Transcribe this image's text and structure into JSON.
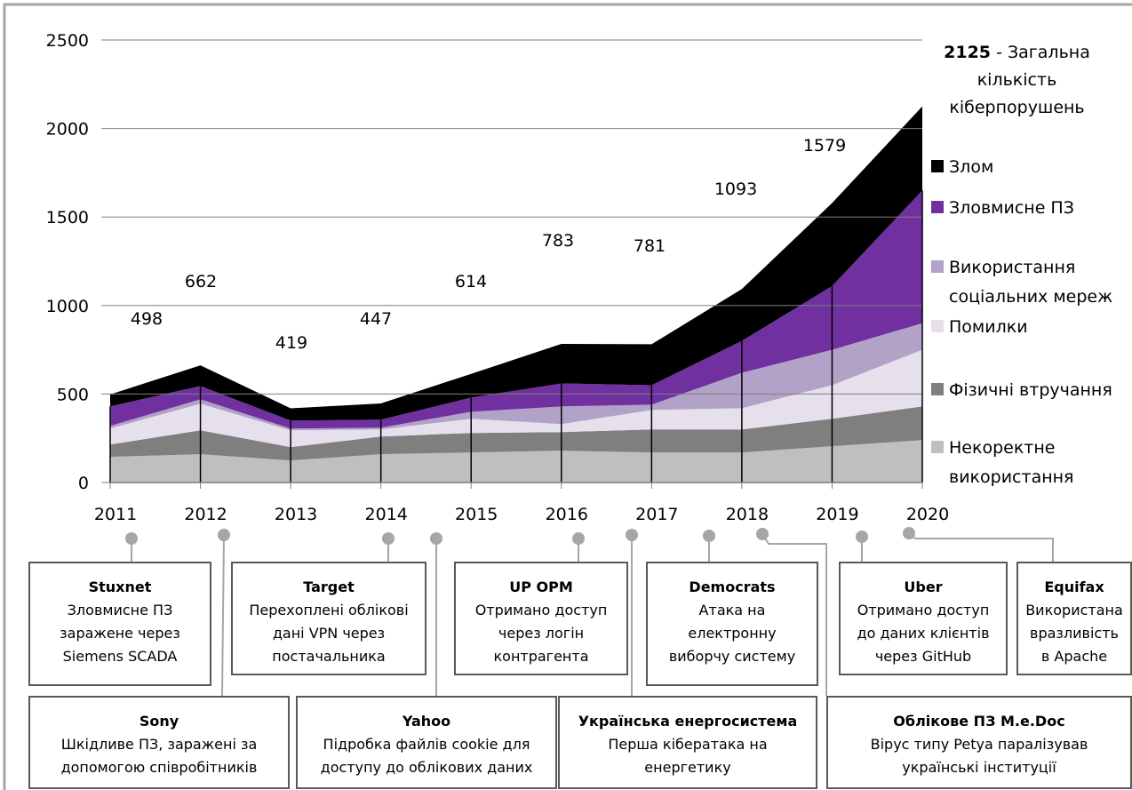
{
  "chart_data": {
    "type": "stacked-area",
    "categories": [
      "2011",
      "2012",
      "2013",
      "2014",
      "2015",
      "2016",
      "2017",
      "2018",
      "2019",
      "2020"
    ],
    "series": [
      {
        "name": "Некоректне використання",
        "color": "#bfbfbf",
        "values": [
          145,
          160,
          125,
          160,
          170,
          180,
          170,
          170,
          205,
          240
        ]
      },
      {
        "name": "Фізичні втручання",
        "color": "#7f7f7f",
        "values": [
          70,
          135,
          75,
          100,
          110,
          105,
          130,
          130,
          155,
          190
        ]
      },
      {
        "name": "Помилки",
        "color": "#e6e0ec",
        "values": [
          90,
          150,
          95,
          40,
          80,
          45,
          110,
          120,
          190,
          320
        ]
      },
      {
        "name": "Використання соціальних мереж",
        "color": "#b3a2c7",
        "values": [
          15,
          25,
          10,
          10,
          40,
          100,
          30,
          200,
          200,
          150
        ]
      },
      {
        "name": "Зловмисне ПЗ",
        "color": "#7030a0",
        "values": [
          110,
          75,
          45,
          45,
          80,
          130,
          110,
          180,
          360,
          750
        ]
      },
      {
        "name": "Злом",
        "color": "#000000",
        "values": [
          68,
          117,
          69,
          92,
          134,
          223,
          231,
          293,
          469,
          475
        ]
      }
    ],
    "totals": [
      498,
      662,
      419,
      447,
      614,
      783,
      781,
      1093,
      1579,
      2125
    ],
    "annotation": "- Загальна кількість кіберпорушень",
    "ylim": [
      0,
      2500
    ],
    "yticks": [
      0,
      500,
      1000,
      1500,
      2000,
      2500
    ],
    "grid": true,
    "events": [
      {
        "title": "Stuxnet",
        "lines": [
          "Зловмисне ПЗ",
          "заражене через",
          "Siemens SCADA"
        ]
      },
      {
        "title": "Sony",
        "lines": [
          "Шкідливе ПЗ, заражені за",
          "допомогою співробітників"
        ]
      },
      {
        "title": "Target",
        "lines": [
          "Перехоплені облікові",
          "дані VPN через",
          "постачальника"
        ]
      },
      {
        "title": "Yahoo",
        "lines": [
          "Підробка файлів cookie для",
          "доступу до облікових даних"
        ]
      },
      {
        "title": "UP OPM",
        "lines": [
          "Отримано доступ",
          "через логін",
          "контрагента"
        ]
      },
      {
        "title": "Українська енергосистема",
        "lines": [
          "Перша кібератака на",
          "енергетику"
        ]
      },
      {
        "title": "Democrats",
        "lines": [
          "Атака на",
          "електронну",
          "виборчу систему"
        ]
      },
      {
        "title": "Облікове ПЗ M.e.Doc",
        "lines": [
          "Вірус типу Petya паралізував",
          "українські інституції"
        ]
      },
      {
        "title": "Uber",
        "lines": [
          "Отримано доступ",
          "до даних клієнтів",
          "через GitHub"
        ]
      },
      {
        "title": "Equifax",
        "lines": [
          "Використана",
          "вразливість",
          "в Apache"
        ]
      }
    ]
  }
}
